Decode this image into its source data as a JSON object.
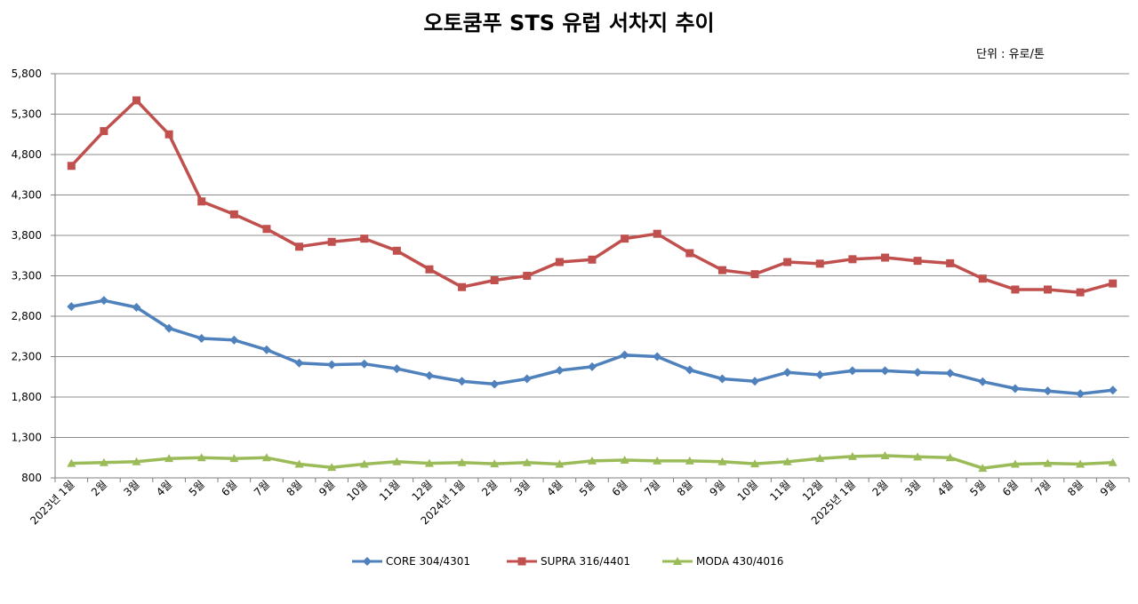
{
  "chart_data": {
    "type": "line",
    "title": "오토쿰푸 STS 유럽 서차지 추이",
    "unit_label": "단위 : 유로/톤",
    "ylim": [
      800,
      5800
    ],
    "yticks": [
      "5,800",
      "5,300",
      "4,800",
      "4,300",
      "3,800",
      "3,300",
      "2,800",
      "2,300",
      "1,800",
      "1,300",
      "800"
    ],
    "grid": true,
    "legend_position": "bottom",
    "categories": [
      "2023년 1월",
      "2월",
      "3월",
      "4월",
      "5월",
      "6월",
      "7월",
      "8월",
      "9월",
      "10월",
      "11월",
      "12월",
      "2024년 1월",
      "2월",
      "3월",
      "4월",
      "5월",
      "6월",
      "7월",
      "8월",
      "9월",
      "10월",
      "11월",
      "12월",
      "2025년 1월",
      "2월",
      "3월",
      "4월",
      "5월",
      "6월",
      "7월",
      "8월",
      "9월"
    ],
    "series": [
      {
        "name": "CORE 304/4301",
        "color": "#4F81BD",
        "marker": "diamond",
        "values": [
          2920,
          2995,
          2910,
          2650,
          2525,
          2505,
          2385,
          2220,
          2200,
          2210,
          2150,
          2065,
          1995,
          1960,
          2025,
          2130,
          2175,
          2320,
          2300,
          2135,
          2025,
          1995,
          2105,
          2075,
          2125,
          2125,
          2105,
          2095,
          1990,
          1905,
          1875,
          1840,
          1885
        ]
      },
      {
        "name": "SUPRA 316/4401",
        "color": "#C0504D",
        "marker": "square",
        "values": [
          4660,
          5090,
          5470,
          5050,
          4220,
          4060,
          3880,
          3660,
          3720,
          3760,
          3610,
          3380,
          3160,
          3245,
          3300,
          3470,
          3500,
          3760,
          3820,
          3580,
          3370,
          3320,
          3470,
          3450,
          3505,
          3525,
          3485,
          3455,
          3265,
          3130,
          3130,
          3095,
          3205
        ]
      },
      {
        "name": "MODA 430/4016",
        "color": "#9BBB59",
        "marker": "triangle",
        "values": [
          980,
          990,
          1000,
          1040,
          1050,
          1040,
          1050,
          970,
          930,
          970,
          1000,
          980,
          990,
          975,
          990,
          970,
          1010,
          1020,
          1010,
          1010,
          1000,
          975,
          1000,
          1040,
          1065,
          1075,
          1060,
          1050,
          920,
          970,
          980,
          970,
          990
        ]
      }
    ]
  }
}
